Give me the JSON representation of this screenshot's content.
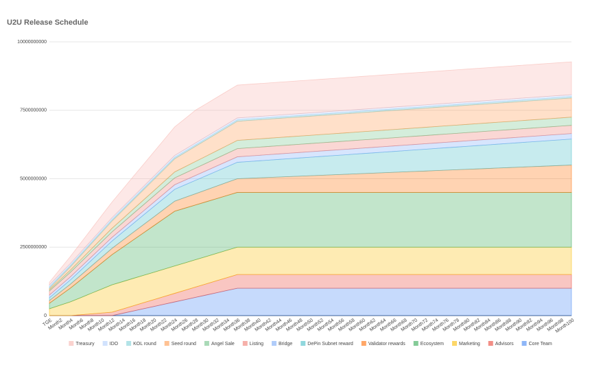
{
  "chart_data": {
    "type": "stacked_area",
    "title": "U2U Release Schedule",
    "categories": [
      "TGE",
      "Month2",
      "Month4",
      "Month6",
      "Month8",
      "Month10",
      "Month12",
      "Month14",
      "Month16",
      "Month18",
      "Month20",
      "Month22",
      "Month24",
      "Month26",
      "Month28",
      "Month30",
      "Month32",
      "Month34",
      "Month36",
      "Month38",
      "Month40",
      "Month42",
      "Month44",
      "Month46",
      "Month48",
      "Month50",
      "Month52",
      "Month54",
      "Month56",
      "Month58",
      "Month60",
      "Month62",
      "Month64",
      "Month66",
      "Month68",
      "Month70",
      "Month72",
      "Month74",
      "Month76",
      "Month78",
      "Month80",
      "Month82",
      "Month84",
      "Month86",
      "Month88",
      "Month90",
      "Month92",
      "Month94",
      "Month96",
      "Month98",
      "Month100"
    ],
    "ylim": [
      0,
      10000000000
    ],
    "yticks": [
      0,
      2500000000,
      5000000000,
      7500000000,
      10000000000
    ],
    "grid": true,
    "legend": "bottom",
    "series": [
      {
        "name": "Treasury",
        "color": "#f7b4ae",
        "values": [
          100000000,
          179000000,
          257000000,
          336000000,
          414000000,
          493000000,
          571000000,
          650000000,
          729000000,
          807000000,
          886000000,
          964000000,
          1043000000,
          1121000000,
          1200000000,
          1200000000,
          1200000000,
          1200000000,
          1200000000,
          1200000000,
          1200000000,
          1200000000,
          1200000000,
          1200000000,
          1200000000,
          1200000000,
          1200000000,
          1200000000,
          1200000000,
          1200000000,
          1200000000,
          1200000000,
          1200000000,
          1200000000,
          1200000000,
          1200000000,
          1200000000,
          1200000000,
          1200000000,
          1200000000,
          1200000000,
          1200000000,
          1200000000,
          1200000000,
          1200000000,
          1200000000,
          1200000000,
          1200000000,
          1200000000,
          1200000000,
          1200000000
        ]
      },
      {
        "name": "IDO",
        "color": "#b3cefb",
        "values": [
          70000000,
          70000000,
          70000000,
          70000000,
          70000000,
          70000000,
          70000000,
          70000000,
          70000000,
          70000000,
          70000000,
          70000000,
          70000000,
          70000000,
          70000000,
          70000000,
          70000000,
          70000000,
          70000000,
          70000000,
          70000000,
          70000000,
          70000000,
          70000000,
          70000000,
          70000000,
          70000000,
          70000000,
          70000000,
          70000000,
          70000000,
          70000000,
          70000000,
          70000000,
          70000000,
          70000000,
          70000000,
          70000000,
          70000000,
          70000000,
          70000000,
          70000000,
          70000000,
          70000000,
          70000000,
          70000000,
          70000000,
          70000000,
          70000000,
          70000000,
          70000000
        ]
      },
      {
        "name": "KOL round",
        "color": "#7ed1d7",
        "values": [
          50000000,
          50000000,
          50000000,
          50000000,
          50000000,
          50000000,
          50000000,
          50000000,
          50000000,
          50000000,
          50000000,
          50000000,
          50000000,
          50000000,
          50000000,
          50000000,
          50000000,
          50000000,
          50000000,
          50000000,
          50000000,
          50000000,
          50000000,
          50000000,
          50000000,
          50000000,
          50000000,
          50000000,
          50000000,
          50000000,
          50000000,
          50000000,
          50000000,
          50000000,
          50000000,
          50000000,
          50000000,
          50000000,
          50000000,
          50000000,
          50000000,
          50000000,
          50000000,
          50000000,
          50000000,
          50000000,
          50000000,
          50000000,
          50000000,
          50000000,
          50000000
        ]
      },
      {
        "name": "Seed round",
        "color": "#ff994d",
        "values": [
          50000000,
          86000000,
          122000000,
          158000000,
          194000000,
          231000000,
          267000000,
          303000000,
          339000000,
          375000000,
          411000000,
          447000000,
          483000000,
          519000000,
          556000000,
          592000000,
          628000000,
          664000000,
          700000000,
          700000000,
          700000000,
          700000000,
          700000000,
          700000000,
          700000000,
          700000000,
          700000000,
          700000000,
          700000000,
          700000000,
          700000000,
          700000000,
          700000000,
          700000000,
          700000000,
          700000000,
          700000000,
          700000000,
          700000000,
          700000000,
          700000000,
          700000000,
          700000000,
          700000000,
          700000000,
          700000000,
          700000000,
          700000000,
          700000000,
          700000000,
          700000000
        ]
      },
      {
        "name": "Angel Sale",
        "color": "#71c287",
        "values": [
          50000000,
          64000000,
          78000000,
          92000000,
          106000000,
          119000000,
          133000000,
          147000000,
          161000000,
          175000000,
          189000000,
          203000000,
          217000000,
          231000000,
          244000000,
          258000000,
          272000000,
          286000000,
          300000000,
          300000000,
          300000000,
          300000000,
          300000000,
          300000000,
          300000000,
          300000000,
          300000000,
          300000000,
          300000000,
          300000000,
          300000000,
          300000000,
          300000000,
          300000000,
          300000000,
          300000000,
          300000000,
          300000000,
          300000000,
          300000000,
          300000000,
          300000000,
          300000000,
          300000000,
          300000000,
          300000000,
          300000000,
          300000000,
          300000000,
          300000000,
          300000000
        ]
      },
      {
        "name": "Listing",
        "color": "#f07b72",
        "values": [
          150000000,
          158000000,
          167000000,
          175000000,
          183000000,
          192000000,
          200000000,
          208000000,
          217000000,
          225000000,
          233000000,
          242000000,
          250000000,
          258000000,
          267000000,
          275000000,
          283000000,
          292000000,
          300000000,
          300000000,
          300000000,
          300000000,
          300000000,
          300000000,
          300000000,
          300000000,
          300000000,
          300000000,
          300000000,
          300000000,
          300000000,
          300000000,
          300000000,
          300000000,
          300000000,
          300000000,
          300000000,
          300000000,
          300000000,
          300000000,
          300000000,
          300000000,
          300000000,
          300000000,
          300000000,
          300000000,
          300000000,
          300000000,
          300000000,
          300000000,
          300000000
        ]
      },
      {
        "name": "Bridge",
        "color": "#7baaf7",
        "values": [
          100000000,
          106000000,
          111000000,
          117000000,
          122000000,
          128000000,
          133000000,
          139000000,
          144000000,
          150000000,
          156000000,
          161000000,
          167000000,
          172000000,
          178000000,
          183000000,
          189000000,
          194000000,
          200000000,
          200000000,
          200000000,
          200000000,
          200000000,
          200000000,
          200000000,
          200000000,
          200000000,
          200000000,
          200000000,
          200000000,
          200000000,
          200000000,
          200000000,
          200000000,
          200000000,
          200000000,
          200000000,
          200000000,
          200000000,
          200000000,
          200000000,
          200000000,
          200000000,
          200000000,
          200000000,
          200000000,
          200000000,
          200000000,
          200000000,
          200000000,
          200000000
        ]
      },
      {
        "name": "DePin Subnet reward",
        "color": "#46bdc6",
        "values": [
          100000000,
          128000000,
          156000000,
          183000000,
          211000000,
          239000000,
          267000000,
          294000000,
          322000000,
          350000000,
          378000000,
          406000000,
          433000000,
          461000000,
          489000000,
          517000000,
          544000000,
          572000000,
          600000000,
          611000000,
          622000000,
          633000000,
          644000000,
          655000000,
          666000000,
          677000000,
          688000000,
          698000000,
          709000000,
          720000000,
          731000000,
          742000000,
          753000000,
          764000000,
          775000000,
          786000000,
          797000000,
          808000000,
          819000000,
          830000000,
          841000000,
          852000000,
          863000000,
          873000000,
          884000000,
          895000000,
          906000000,
          917000000,
          928000000,
          939000000,
          950000000
        ]
      },
      {
        "name": "Validator rewards",
        "color": "#ff6d01",
        "values": [
          100000000,
          122000000,
          144000000,
          167000000,
          189000000,
          211000000,
          233000000,
          256000000,
          278000000,
          300000000,
          322000000,
          344000000,
          367000000,
          389000000,
          411000000,
          433000000,
          456000000,
          478000000,
          500000000,
          516000000,
          531000000,
          547000000,
          563000000,
          578000000,
          594000000,
          609000000,
          625000000,
          641000000,
          656000000,
          672000000,
          688000000,
          703000000,
          719000000,
          734000000,
          750000000,
          766000000,
          781000000,
          797000000,
          813000000,
          828000000,
          844000000,
          859000000,
          875000000,
          891000000,
          906000000,
          922000000,
          938000000,
          953000000,
          969000000,
          984000000,
          1000000000
        ]
      },
      {
        "name": "Ecosystem",
        "color": "#34a853",
        "values": [
          200000000,
          350000000,
          500000000,
          650000000,
          800000000,
          950000000,
          1100000000,
          1250000000,
          1400000000,
          1550000000,
          1700000000,
          1850000000,
          2000000000,
          2000000000,
          2000000000,
          2000000000,
          2000000000,
          2000000000,
          2000000000,
          2000000000,
          2000000000,
          2000000000,
          2000000000,
          2000000000,
          2000000000,
          2000000000,
          2000000000,
          2000000000,
          2000000000,
          2000000000,
          2000000000,
          2000000000,
          2000000000,
          2000000000,
          2000000000,
          2000000000,
          2000000000,
          2000000000,
          2000000000,
          2000000000,
          2000000000,
          2000000000,
          2000000000,
          2000000000,
          2000000000,
          2000000000,
          2000000000,
          2000000000,
          2000000000,
          2000000000,
          2000000000
        ]
      },
      {
        "name": "Marketing",
        "color": "#fbbc04",
        "values": [
          250000000,
          375000000,
          500000000,
          625000000,
          750000000,
          875000000,
          1000000000,
          1000000000,
          1000000000,
          1000000000,
          1000000000,
          1000000000,
          1000000000,
          1000000000,
          1000000000,
          1000000000,
          1000000000,
          1000000000,
          1000000000,
          1000000000,
          1000000000,
          1000000000,
          1000000000,
          1000000000,
          1000000000,
          1000000000,
          1000000000,
          1000000000,
          1000000000,
          1000000000,
          1000000000,
          1000000000,
          1000000000,
          1000000000,
          1000000000,
          1000000000,
          1000000000,
          1000000000,
          1000000000,
          1000000000,
          1000000000,
          1000000000,
          1000000000,
          1000000000,
          1000000000,
          1000000000,
          1000000000,
          1000000000,
          1000000000,
          1000000000,
          1000000000
        ]
      },
      {
        "name": "Advisors",
        "color": "#ea4335",
        "values": [
          0,
          0,
          0,
          31000000,
          63000000,
          94000000,
          125000000,
          156000000,
          188000000,
          219000000,
          250000000,
          281000000,
          313000000,
          344000000,
          375000000,
          406000000,
          438000000,
          469000000,
          500000000,
          500000000,
          500000000,
          500000000,
          500000000,
          500000000,
          500000000,
          500000000,
          500000000,
          500000000,
          500000000,
          500000000,
          500000000,
          500000000,
          500000000,
          500000000,
          500000000,
          500000000,
          500000000,
          500000000,
          500000000,
          500000000,
          500000000,
          500000000,
          500000000,
          500000000,
          500000000,
          500000000,
          500000000,
          500000000,
          500000000,
          500000000,
          500000000
        ]
      },
      {
        "name": "Core Team",
        "color": "#4285f4",
        "values": [
          0,
          0,
          0,
          0,
          0,
          0,
          0,
          83000000,
          167000000,
          250000000,
          333000000,
          417000000,
          500000000,
          583000000,
          667000000,
          750000000,
          833000000,
          917000000,
          1000000000,
          1000000000,
          1000000000,
          1000000000,
          1000000000,
          1000000000,
          1000000000,
          1000000000,
          1000000000,
          1000000000,
          1000000000,
          1000000000,
          1000000000,
          1000000000,
          1000000000,
          1000000000,
          1000000000,
          1000000000,
          1000000000,
          1000000000,
          1000000000,
          1000000000,
          1000000000,
          1000000000,
          1000000000,
          1000000000,
          1000000000,
          1000000000,
          1000000000,
          1000000000,
          1000000000,
          1000000000,
          1000000000
        ]
      }
    ]
  }
}
